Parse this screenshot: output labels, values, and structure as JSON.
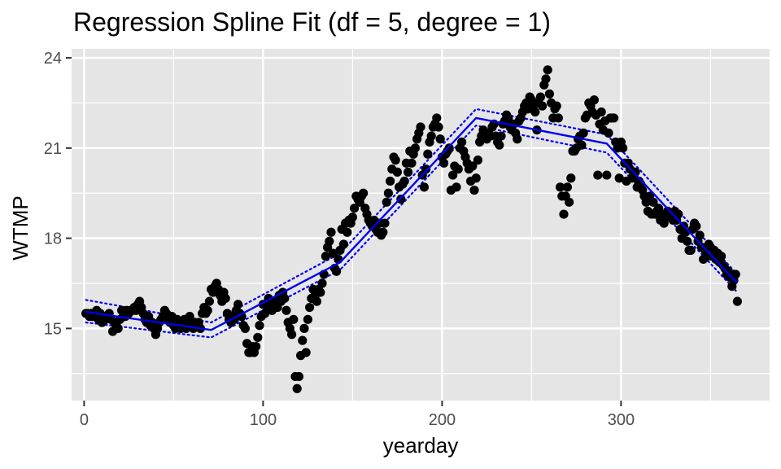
{
  "chart_data": {
    "type": "scatter",
    "title": "Regression Spline Fit (df = 5, degree = 1)",
    "xlabel": "yearday",
    "ylabel": "WTMP",
    "xlim": [
      -7,
      383
    ],
    "ylim": [
      12.6,
      24.3
    ],
    "x_ticks": [
      0,
      100,
      200,
      300
    ],
    "y_ticks": [
      15,
      18,
      21,
      24
    ],
    "x_minor": [
      50,
      150,
      250,
      350
    ],
    "y_minor": [
      13.5,
      16.5,
      19.5,
      22.5
    ],
    "grid": true,
    "background": "#e5e5e5",
    "point_color": "#000000",
    "fit_color": "#0000ee",
    "points": [
      [
        1,
        15.5
      ],
      [
        2,
        15.5
      ],
      [
        3,
        15.4
      ],
      [
        4,
        15.5
      ],
      [
        5,
        15.4
      ],
      [
        6,
        15.5
      ],
      [
        7,
        15.6
      ],
      [
        8,
        15.3
      ],
      [
        9,
        15.5
      ],
      [
        10,
        15.2
      ],
      [
        11,
        15.4
      ],
      [
        12,
        15.3
      ],
      [
        13,
        15.4
      ],
      [
        14,
        15.5
      ],
      [
        15,
        15.3
      ],
      [
        16,
        14.9
      ],
      [
        17,
        15.2
      ],
      [
        18,
        15.1
      ],
      [
        19,
        15.0
      ],
      [
        20,
        15.3
      ],
      [
        21,
        15.6
      ],
      [
        22,
        15.5
      ],
      [
        23,
        15.4
      ],
      [
        24,
        15.6
      ],
      [
        25,
        15.5
      ],
      [
        26,
        15.6
      ],
      [
        27,
        15.6
      ],
      [
        28,
        15.7
      ],
      [
        29,
        15.6
      ],
      [
        30,
        15.8
      ],
      [
        31,
        15.9
      ],
      [
        32,
        15.7
      ],
      [
        33,
        15.5
      ],
      [
        34,
        15.3
      ],
      [
        35,
        15.2
      ],
      [
        36,
        15.4
      ],
      [
        37,
        15.1
      ],
      [
        38,
        15.2
      ],
      [
        39,
        15.0
      ],
      [
        40,
        14.8
      ],
      [
        41,
        15.0
      ],
      [
        42,
        15.2
      ],
      [
        43,
        15.3
      ],
      [
        44,
        15.4
      ],
      [
        45,
        15.6
      ],
      [
        46,
        15.5
      ],
      [
        47,
        15.3
      ],
      [
        48,
        15.2
      ],
      [
        49,
        15.4
      ],
      [
        50,
        15.1
      ],
      [
        51,
        15.0
      ],
      [
        52,
        15.3
      ],
      [
        53,
        15.2
      ],
      [
        54,
        15.0
      ],
      [
        55,
        15.1
      ],
      [
        56,
        15.3
      ],
      [
        57,
        15.0
      ],
      [
        58,
        15.2
      ],
      [
        59,
        15.4
      ],
      [
        60,
        15.1
      ],
      [
        61,
        15.0
      ],
      [
        62,
        15.2
      ],
      [
        63,
        15.1
      ],
      [
        64,
        15.2
      ],
      [
        65,
        15.0
      ],
      [
        66,
        15.5
      ],
      [
        67,
        15.7
      ],
      [
        68,
        15.5
      ],
      [
        69,
        15.6
      ],
      [
        70,
        15.9
      ],
      [
        71,
        16.3
      ],
      [
        72,
        16.2
      ],
      [
        73,
        16.4
      ],
      [
        74,
        16.5
      ],
      [
        75,
        16.3
      ],
      [
        76,
        16.1
      ],
      [
        77,
        15.9
      ],
      [
        78,
        16.2
      ],
      [
        79,
        16.0
      ],
      [
        80,
        15.5
      ],
      [
        81,
        15.3
      ],
      [
        82,
        15.2
      ],
      [
        83,
        15.4
      ],
      [
        84,
        15.3
      ],
      [
        85,
        15.6
      ],
      [
        86,
        15.8
      ],
      [
        87,
        15.5
      ],
      [
        88,
        15.4
      ],
      [
        89,
        15.1
      ],
      [
        90,
        15.0
      ],
      [
        91,
        14.5
      ],
      [
        92,
        14.2
      ],
      [
        93,
        14.2
      ],
      [
        94,
        14.4
      ],
      [
        95,
        14.2
      ],
      [
        96,
        14.4
      ],
      [
        97,
        14.7
      ],
      [
        98,
        15.1
      ],
      [
        99,
        15.4
      ],
      [
        100,
        15.8
      ],
      [
        101,
        15.5
      ],
      [
        102,
        15.8
      ],
      [
        103,
        16.0
      ],
      [
        104,
        15.7
      ],
      [
        105,
        15.6
      ],
      [
        106,
        15.8
      ],
      [
        107,
        15.9
      ],
      [
        108,
        15.7
      ],
      [
        109,
        16.1
      ],
      [
        110,
        15.9
      ],
      [
        111,
        16.2
      ],
      [
        112,
        16.0
      ],
      [
        113,
        15.6
      ],
      [
        114,
        15.2
      ],
      [
        115,
        15.0
      ],
      [
        116,
        14.8
      ],
      [
        117,
        15.3
      ],
      [
        118,
        13.4
      ],
      [
        119,
        13.0
      ],
      [
        120,
        13.4
      ],
      [
        121,
        14.1
      ],
      [
        122,
        14.6
      ],
      [
        123,
        15.0
      ],
      [
        124,
        14.2
      ],
      [
        125,
        15.3
      ],
      [
        126,
        15.7
      ],
      [
        127,
        16.0
      ],
      [
        128,
        16.3
      ],
      [
        129,
        16.1
      ],
      [
        130,
        15.9
      ],
      [
        131,
        16.3
      ],
      [
        132,
        16.2
      ],
      [
        133,
        16.5
      ],
      [
        134,
        16.8
      ],
      [
        135,
        17.4
      ],
      [
        136,
        17.7
      ],
      [
        137,
        17.9
      ],
      [
        138,
        18.2
      ],
      [
        139,
        17.5
      ],
      [
        140,
        17.0
      ],
      [
        141,
        16.9
      ],
      [
        142,
        17.3
      ],
      [
        143,
        17.6
      ],
      [
        144,
        18.3
      ],
      [
        145,
        17.8
      ],
      [
        146,
        18.5
      ],
      [
        147,
        18.2
      ],
      [
        148,
        18.6
      ],
      [
        149,
        18.5
      ],
      [
        150,
        18.7
      ],
      [
        151,
        19.0
      ],
      [
        152,
        19.4
      ],
      [
        153,
        19.3
      ],
      [
        154,
        19.2
      ],
      [
        155,
        19.4
      ],
      [
        156,
        19.5
      ],
      [
        157,
        19.0
      ],
      [
        158,
        18.8
      ],
      [
        159,
        18.6
      ],
      [
        160,
        18.5
      ],
      [
        161,
        18.4
      ],
      [
        162,
        18.6
      ],
      [
        163,
        18.3
      ],
      [
        164,
        18.2
      ],
      [
        165,
        18.5
      ],
      [
        166,
        18.1
      ],
      [
        167,
        18.2
      ],
      [
        168,
        18.5
      ],
      [
        169,
        19.2
      ],
      [
        170,
        19.5
      ],
      [
        171,
        19.9
      ],
      [
        172,
        20.3
      ],
      [
        173,
        20.7
      ],
      [
        174,
        20.6
      ],
      [
        175,
        20.2
      ],
      [
        176,
        19.7
      ],
      [
        177,
        19.3
      ],
      [
        178,
        19.8
      ],
      [
        179,
        19.9
      ],
      [
        180,
        20.5
      ],
      [
        181,
        20.2
      ],
      [
        182,
        20.9
      ],
      [
        183,
        20.5
      ],
      [
        184,
        20.8
      ],
      [
        185,
        21.0
      ],
      [
        186,
        21.3
      ],
      [
        187,
        21.5
      ],
      [
        188,
        21.7
      ],
      [
        189,
        20.1
      ],
      [
        190,
        19.7
      ],
      [
        191,
        20.3
      ],
      [
        192,
        20.8
      ],
      [
        193,
        21.2
      ],
      [
        194,
        21.4
      ],
      [
        195,
        21.7
      ],
      [
        196,
        21.8
      ],
      [
        197,
        22.0
      ],
      [
        198,
        21.7
      ],
      [
        199,
        21.3
      ],
      [
        200,
        20.7
      ],
      [
        201,
        20.5
      ],
      [
        202,
        20.8
      ],
      [
        203,
        20.9
      ],
      [
        204,
        21.0
      ],
      [
        205,
        19.6
      ],
      [
        206,
        20.1
      ],
      [
        207,
        20.4
      ],
      [
        208,
        19.7
      ],
      [
        209,
        20.3
      ],
      [
        210,
        21.0
      ],
      [
        211,
        21.2
      ],
      [
        212,
        20.9
      ],
      [
        213,
        20.7
      ],
      [
        214,
        20.5
      ],
      [
        215,
        20.3
      ],
      [
        216,
        19.9
      ],
      [
        217,
        20.4
      ],
      [
        218,
        19.6
      ],
      [
        219,
        20.0
      ],
      [
        220,
        20.6
      ],
      [
        221,
        21.2
      ],
      [
        222,
        21.4
      ],
      [
        223,
        21.6
      ],
      [
        224,
        21.5
      ],
      [
        225,
        21.3
      ],
      [
        226,
        21.5
      ],
      [
        227,
        21.4
      ],
      [
        228,
        21.7
      ],
      [
        229,
        21.8
      ],
      [
        230,
        21.4
      ],
      [
        231,
        21.2
      ],
      [
        232,
        21.1
      ],
      [
        233,
        21.4
      ],
      [
        234,
        21.8
      ],
      [
        235,
        21.9
      ],
      [
        236,
        22.1
      ],
      [
        237,
        22.0
      ],
      [
        238,
        21.7
      ],
      [
        239,
        21.6
      ],
      [
        240,
        21.8
      ],
      [
        241,
        21.5
      ],
      [
        242,
        21.3
      ],
      [
        243,
        21.9
      ],
      [
        244,
        22.0
      ],
      [
        245,
        22.2
      ],
      [
        246,
        22.4
      ],
      [
        247,
        22.5
      ],
      [
        248,
        22.3
      ],
      [
        249,
        22.7
      ],
      [
        250,
        22.6
      ],
      [
        251,
        22.4
      ],
      [
        252,
        22.2
      ],
      [
        253,
        21.6
      ],
      [
        254,
        22.5
      ],
      [
        255,
        22.7
      ],
      [
        256,
        22.4
      ],
      [
        257,
        23.1
      ],
      [
        258,
        23.3
      ],
      [
        259,
        23.6
      ],
      [
        260,
        22.8
      ],
      [
        261,
        22.5
      ],
      [
        262,
        22.0
      ],
      [
        263,
        22.3
      ],
      [
        264,
        22.4
      ],
      [
        265,
        22.0
      ],
      [
        266,
        19.7
      ],
      [
        267,
        19.4
      ],
      [
        268,
        18.8
      ],
      [
        269,
        19.4
      ],
      [
        270,
        19.7
      ],
      [
        271,
        19.2
      ],
      [
        272,
        20.0
      ],
      [
        273,
        20.9
      ],
      [
        274,
        20.9
      ],
      [
        275,
        21.0
      ],
      [
        276,
        21.3
      ],
      [
        277,
        21.4
      ],
      [
        278,
        21.1
      ],
      [
        279,
        21.5
      ],
      [
        280,
        22.0
      ],
      [
        281,
        22.1
      ],
      [
        282,
        22.5
      ],
      [
        283,
        22.4
      ],
      [
        284,
        22.2
      ],
      [
        285,
        22.6
      ],
      [
        286,
        22.1
      ],
      [
        287,
        20.1
      ],
      [
        288,
        21.8
      ],
      [
        289,
        22.2
      ],
      [
        290,
        21.6
      ],
      [
        291,
        21.9
      ],
      [
        292,
        20.1
      ],
      [
        293,
        21.5
      ],
      [
        294,
        22.0
      ],
      [
        295,
        22.0
      ],
      [
        296,
        22.0
      ],
      [
        297,
        21.2
      ],
      [
        298,
        21.0
      ],
      [
        299,
        20.0
      ],
      [
        300,
        21.2
      ],
      [
        301,
        21.0
      ],
      [
        302,
        20.5
      ],
      [
        303,
        19.9
      ],
      [
        304,
        20.5
      ],
      [
        305,
        20.3
      ],
      [
        306,
        20.0
      ],
      [
        307,
        20.1
      ],
      [
        308,
        20.2
      ],
      [
        309,
        19.7
      ],
      [
        310,
        19.9
      ],
      [
        311,
        19.8
      ],
      [
        312,
        19.6
      ],
      [
        313,
        19.4
      ],
      [
        314,
        19.2
      ],
      [
        315,
        18.9
      ],
      [
        316,
        19.4
      ],
      [
        317,
        18.8
      ],
      [
        318,
        19.2
      ],
      [
        319,
        18.8
      ],
      [
        320,
        18.9
      ],
      [
        321,
        19.0
      ],
      [
        322,
        18.6
      ],
      [
        323,
        18.8
      ],
      [
        324,
        18.5
      ],
      [
        325,
        18.7
      ],
      [
        326,
        18.9
      ],
      [
        327,
        18.7
      ],
      [
        328,
        18.8
      ],
      [
        329,
        18.6
      ],
      [
        330,
        18.9
      ],
      [
        331,
        18.6
      ],
      [
        332,
        18.8
      ],
      [
        333,
        18.3
      ],
      [
        334,
        18.0
      ],
      [
        335,
        18.4
      ],
      [
        336,
        18.2
      ],
      [
        337,
        17.9
      ],
      [
        338,
        17.6
      ],
      [
        339,
        17.6
      ],
      [
        340,
        18.3
      ],
      [
        341,
        18.5
      ],
      [
        342,
        18.4
      ],
      [
        343,
        17.9
      ],
      [
        344,
        18.1
      ],
      [
        345,
        17.7
      ],
      [
        346,
        17.3
      ],
      [
        347,
        17.6
      ],
      [
        348,
        17.4
      ],
      [
        349,
        17.8
      ],
      [
        350,
        17.7
      ],
      [
        351,
        17.4
      ],
      [
        352,
        17.6
      ],
      [
        353,
        17.3
      ],
      [
        354,
        17.5
      ],
      [
        355,
        17.2
      ],
      [
        356,
        17.4
      ],
      [
        357,
        17.1
      ],
      [
        358,
        17.0
      ],
      [
        359,
        16.8
      ],
      [
        360,
        16.9
      ],
      [
        361,
        16.7
      ],
      [
        362,
        16.4
      ],
      [
        363,
        16.6
      ],
      [
        364,
        16.8
      ],
      [
        365,
        15.9
      ]
    ],
    "fit": {
      "x": [
        1,
        71,
        143,
        219,
        292,
        365
      ],
      "y": [
        15.55,
        14.95,
        17.2,
        22.0,
        21.15,
        16.5
      ]
    },
    "ci_upper": {
      "x": [
        1,
        71,
        143,
        219,
        292,
        365
      ],
      "y": [
        15.95,
        15.2,
        17.5,
        22.3,
        21.45,
        16.8
      ]
    },
    "ci_lower": {
      "x": [
        1,
        71,
        143,
        219,
        292,
        365
      ],
      "y": [
        15.2,
        14.7,
        16.95,
        21.75,
        20.85,
        16.2
      ]
    }
  }
}
